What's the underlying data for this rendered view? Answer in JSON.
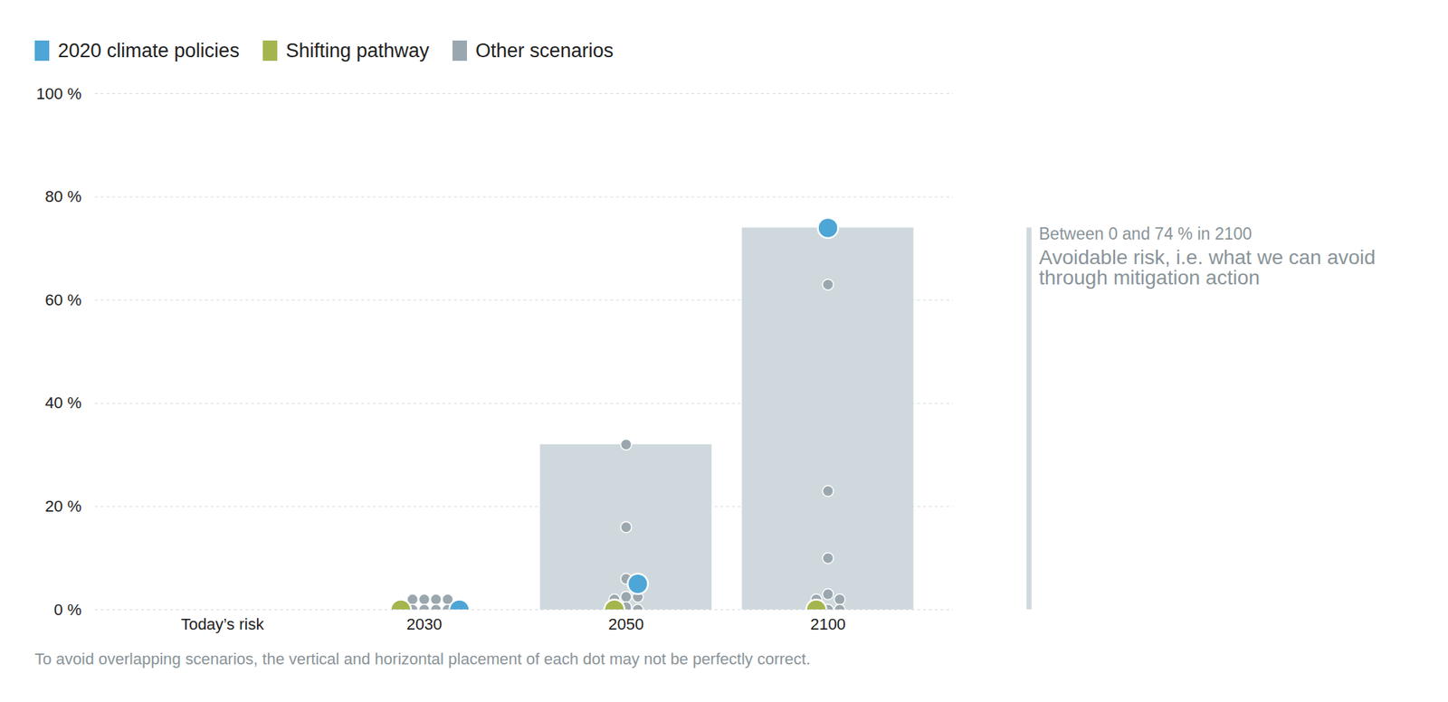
{
  "chart_data": {
    "type": "scatter",
    "categories": [
      "Today’s risk",
      "2030",
      "2050",
      "2100"
    ],
    "series": [
      {
        "name": "2020 climate policies",
        "color": "#4da6d6",
        "values": [
          null,
          0,
          5,
          74
        ]
      },
      {
        "name": "Shifting pathway",
        "color": "#a5b54d",
        "values": [
          null,
          0,
          0,
          0
        ]
      },
      {
        "name": "Other scenarios",
        "color": "#9ba7ae",
        "values": [
          [],
          [
            2,
            2,
            2,
            2,
            0,
            0,
            0,
            0
          ],
          [
            32,
            16,
            6,
            2.5,
            2.5,
            2,
            0.5,
            0
          ],
          [
            63,
            23,
            10,
            3,
            2,
            2,
            0,
            0
          ]
        ]
      }
    ],
    "ranges": {
      "values": [
        null,
        null,
        [
          0,
          32
        ],
        [
          0,
          74
        ]
      ],
      "color": "#cfd9dd"
    },
    "annotations": [
      {
        "category": "2100",
        "label": "Between 0 and 74 % in 2100",
        "text": "Avoidable risk, i.e. what we can avoid through mitigation action"
      }
    ],
    "caption": "To avoid overlapping scenarios, the vertical and horizontal placement of each dot may not be perfectly correct.",
    "ylim": [
      0,
      100
    ],
    "yticks": [
      {
        "value": 0,
        "label": "0 %"
      },
      {
        "value": 20,
        "label": "20 %"
      },
      {
        "value": 40,
        "label": "40 %"
      },
      {
        "value": 60,
        "label": "60 %"
      },
      {
        "value": 80,
        "label": "80 %"
      },
      {
        "value": 100,
        "label": "100 %"
      }
    ],
    "grid": true,
    "legend": "top-left"
  }
}
